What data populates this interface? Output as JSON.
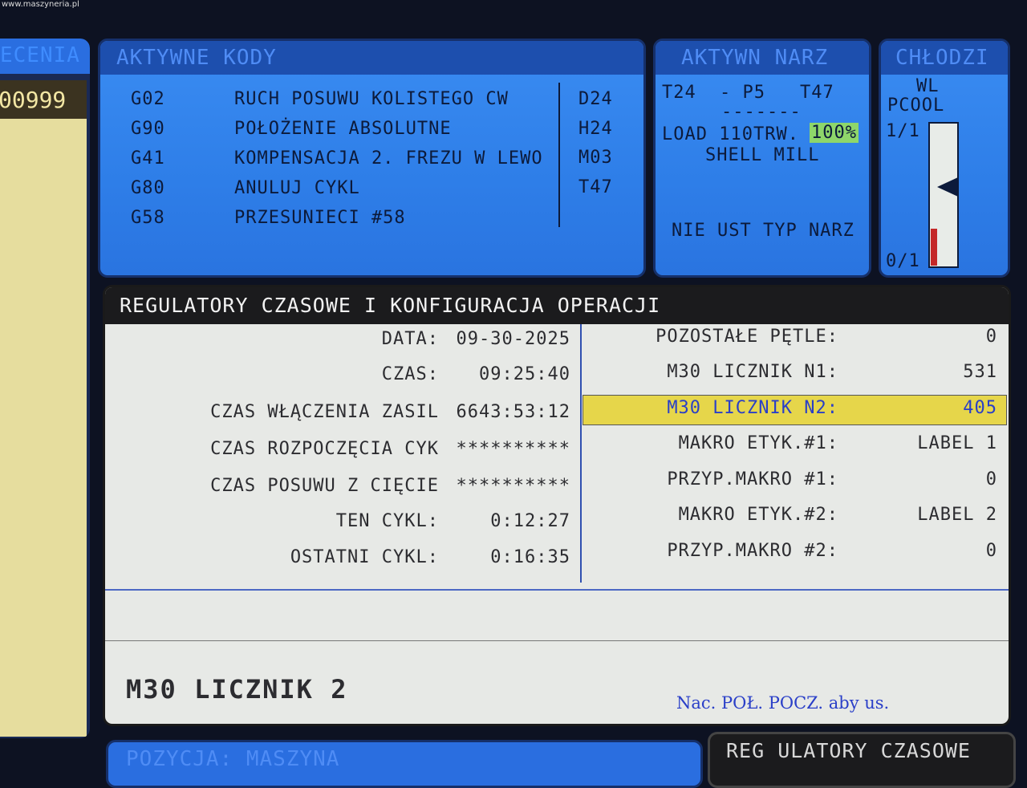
{
  "watermark": "www.maszyneria.pl",
  "left_panel": {
    "title": "ECENIA",
    "value": "00999"
  },
  "active_codes": {
    "title": "AKTYWNE KODY",
    "rows": [
      [
        "G02",
        "RUCH POSUWU KOLISTEGO CW"
      ],
      [
        "G90",
        "POŁOŻENIE ABSOLUTNE"
      ],
      [
        "G41",
        "KOMPENSACJA 2. FREZU W LEWO"
      ],
      [
        "G80",
        "ANULUJ CYKL"
      ],
      [
        "G58",
        "PRZESUNIECI #58"
      ]
    ],
    "side": [
      "D24",
      "H24",
      "M03",
      "T47"
    ]
  },
  "active_tool": {
    "title": "AKTYWN NARZ",
    "tool": "T24",
    "pocket": "- P5",
    "next": "T47",
    "separator": "-------",
    "load_label": "LOAD 110TRW.",
    "load_value": "100%",
    "tool_name": "SHELL MILL",
    "tool_type": "NIE UST TYP NARZ"
  },
  "coolant": {
    "title": "CHŁODZI",
    "label1": "WL",
    "label2": "PCOOL",
    "top": "1/1",
    "bottom": "0/1"
  },
  "timers": {
    "title": "REGULATORY CZASOWE I KONFIGURACJA OPERACJI",
    "left_rows": [
      [
        "DATA:",
        "09-30-2025"
      ],
      [
        "CZAS:",
        "09:25:40"
      ],
      [
        "CZAS WŁĄCZENIA ZASIL",
        "6643:53:12"
      ],
      [
        "CZAS ROZPOCZĘCIA CYK",
        "**********"
      ],
      [
        "CZAS POSUWU Z CIĘCIE",
        "**********"
      ],
      [
        "TEN CYKL:",
        "0:12:27"
      ],
      [
        "OSTATNI CYKL:",
        "0:16:35"
      ]
    ],
    "right_rows": [
      [
        "POZOSTAŁE PĘTLE:",
        "0"
      ],
      [
        "M30 LICZNIK N1:",
        "531"
      ],
      [
        "M30 LICZNIK N2:",
        "405"
      ],
      [
        "MAKRO ETYK.#1:",
        "LABEL 1"
      ],
      [
        "PRZYP.MAKRO #1:",
        "0"
      ],
      [
        "MAKRO ETYK.#2:",
        "LABEL 2"
      ],
      [
        "PRZYP.MAKRO #2:",
        "0"
      ]
    ],
    "message": "M30 LICZNIK 2",
    "hint": "Nac. POŁ. POCZ. aby us."
  },
  "bottom_tabs": [
    "POZYCJA: MASZYNA",
    "REG ULATORY CZASOWE"
  ]
}
